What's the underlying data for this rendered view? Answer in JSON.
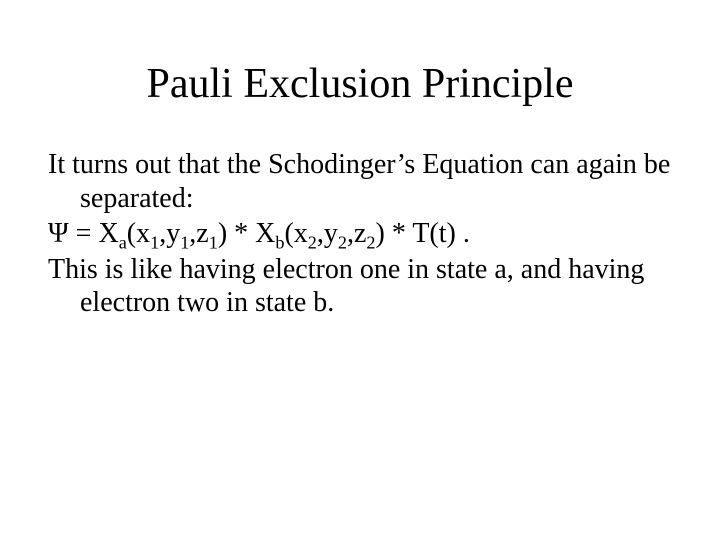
{
  "title": "Pauli Exclusion Principle",
  "body": {
    "p1_a": "It turns out that the Schodinger’s Equation can again be separated:",
    "eq": {
      "psi": "Ψ",
      "eq_text_1": " = X",
      "sub_a": "a",
      "open1": "(x",
      "s1": "1",
      "c1": ",y",
      "s2": "1",
      "c2": ",z",
      "s3": "1",
      "close1": ") * X",
      "sub_b": "b",
      "open2": "(x",
      "s4": "2",
      "c3": ",y",
      "s5": "2",
      "c4": ",z",
      "s6": "2",
      "close2": ") * T(t) ."
    },
    "p2": "This is like having electron one in state a, and having electron two in state b."
  },
  "colors": {
    "background": "#ffffff",
    "text": "#000000"
  },
  "fonts": {
    "family": "Times New Roman",
    "title_size_pt": 32,
    "body_size_pt": 21
  }
}
